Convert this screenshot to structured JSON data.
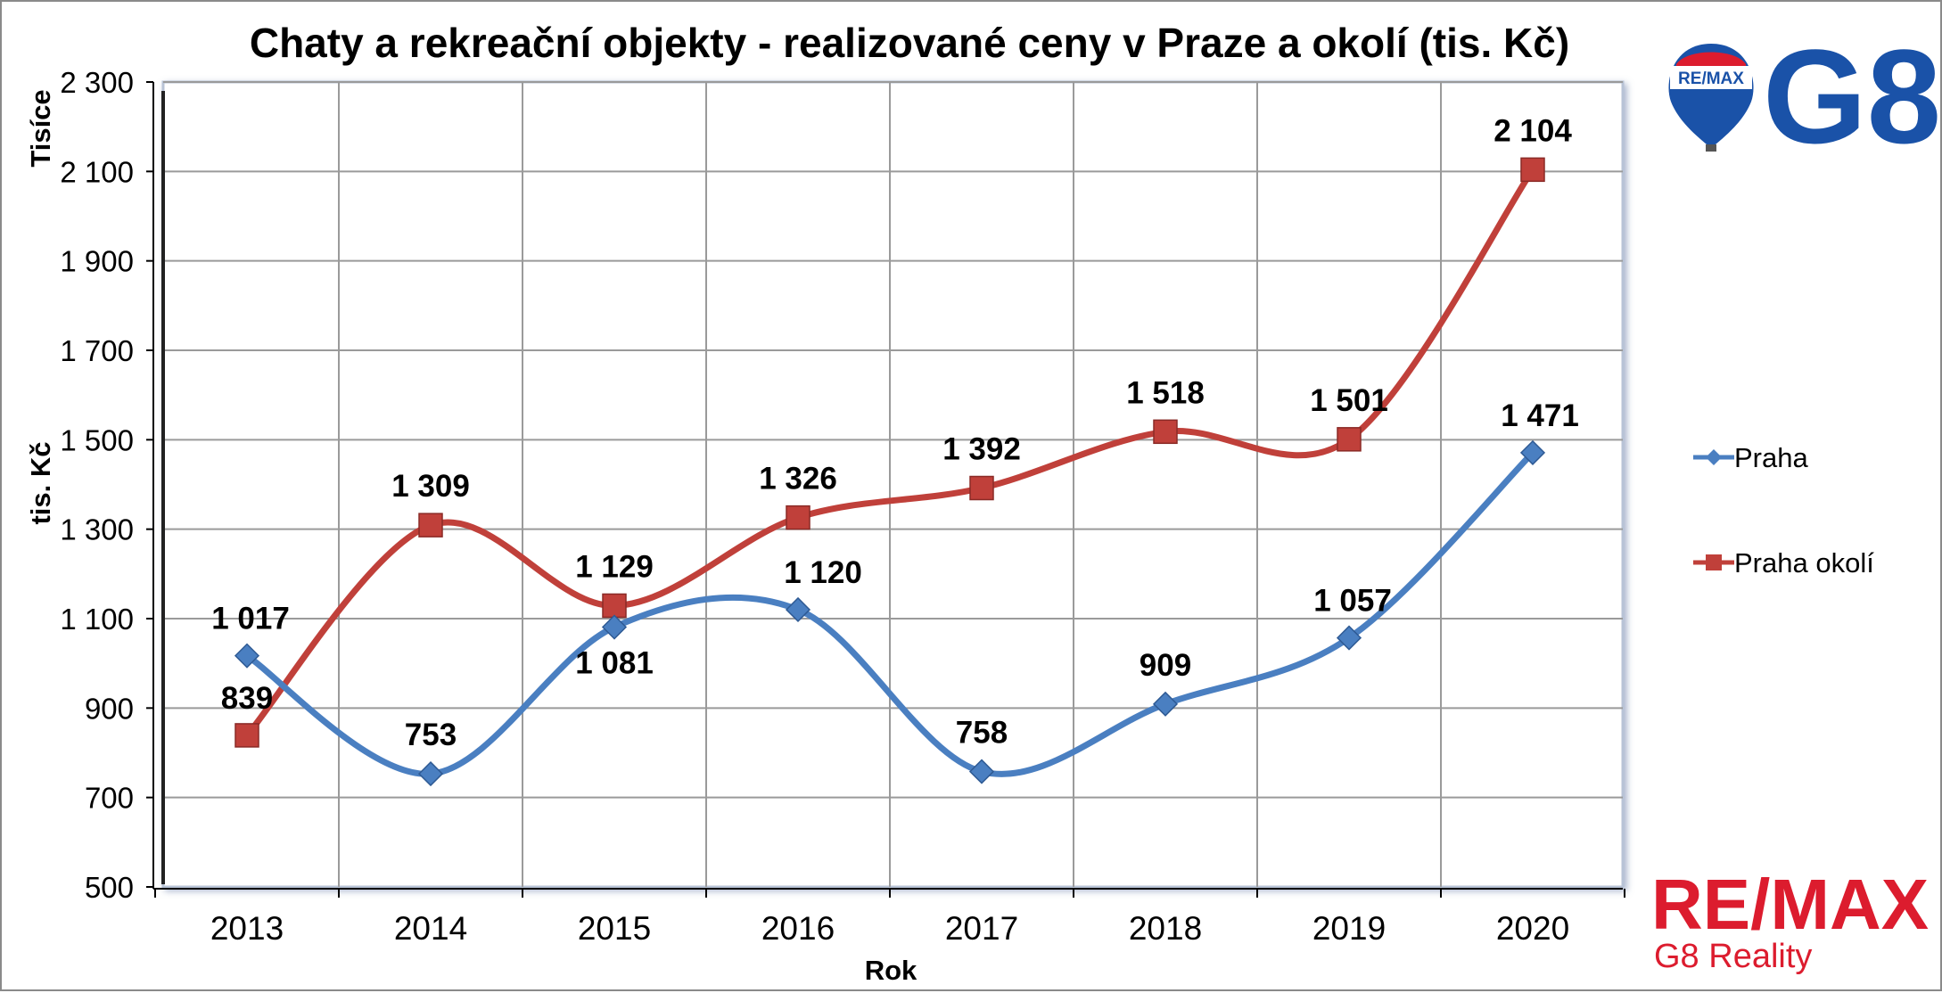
{
  "chart_data": {
    "type": "line",
    "title": "Chaty a rekreační objekty - realizované ceny v Praze a okolí (tis. Kč)",
    "xlabel": "Rok",
    "ylabel": "tis. Kč",
    "yunit_label": "Tisíce",
    "categories": [
      "2013",
      "2014",
      "2015",
      "2016",
      "2017",
      "2018",
      "2019",
      "2020"
    ],
    "ylim": [
      500,
      2300
    ],
    "yticks": [
      500,
      700,
      900,
      1100,
      1300,
      1500,
      1700,
      1900,
      2100,
      2300
    ],
    "ytick_labels": [
      "500",
      "700",
      "900",
      "1 100",
      "1 300",
      "1 500",
      "1 700",
      "1 900",
      "2 100",
      "2 300"
    ],
    "grid": true,
    "legend_position": "right",
    "series": [
      {
        "name": "Praha",
        "color": "#4a7fc1",
        "marker": "diamond",
        "values": [
          1017,
          753,
          1081,
          1120,
          758,
          909,
          1057,
          1471
        ],
        "labels": [
          "1 017",
          "753",
          "1 081",
          "1 120",
          "758",
          "909",
          "1 057",
          "1 471"
        ]
      },
      {
        "name": "Praha okolí",
        "color": "#c0403a",
        "marker": "square",
        "values": [
          839,
          1309,
          1129,
          1326,
          1392,
          1518,
          1501,
          2104
        ],
        "labels": [
          "839",
          "1 309",
          "1 129",
          "1 326",
          "1 392",
          "1 518",
          "1 501",
          "2 104"
        ]
      }
    ]
  },
  "brand": {
    "balloon_text": "RE/MAX",
    "logo_g8": "G8",
    "remax_text": "RE/MAX",
    "remax_sub": "G8 Reality",
    "red": "#dc1c2e",
    "blue": "#1a52a8"
  }
}
